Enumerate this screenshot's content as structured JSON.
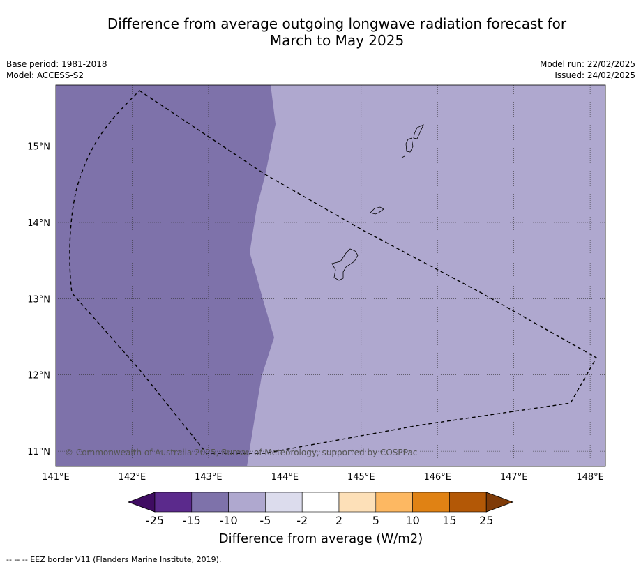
{
  "title_line1": "Difference from average outgoing longwave radiation forecast for",
  "title_line2": "March to May 2025",
  "meta_left": [
    "Base period: 1981-2018",
    "Model: ACCESS-S2"
  ],
  "meta_right": [
    "Model run: 22/02/2025",
    "Issued: 24/02/2025"
  ],
  "map": {
    "lon_range": [
      141,
      148.2
    ],
    "lat_range": [
      10.8,
      15.8
    ],
    "lon_ticks": [
      "141°E",
      "142°E",
      "143°E",
      "144°E",
      "145°E",
      "146°E",
      "147°E",
      "148°E"
    ],
    "lat_ticks": [
      "15°N",
      "14°N",
      "13°N",
      "12°N",
      "11°N"
    ],
    "grid": true,
    "regions": [
      {
        "name": "-15 to -10",
        "color": "#7e72aa"
      },
      {
        "name": "-10 to -5",
        "color": "#afa8cf"
      }
    ],
    "copyright": "© Commonwealth of Australia 2025, Bureau of Meteorology, supported by COSPPac"
  },
  "colorbar": {
    "ticks": [
      "-25",
      "-15",
      "-10",
      "-5",
      "-2",
      "2",
      "5",
      "10",
      "15",
      "25"
    ],
    "colors": [
      "#3f0c62",
      "#5b2a8c",
      "#7e72aa",
      "#afa8cf",
      "#dcdced",
      "#ffffff",
      "#fde0b8",
      "#fdb862",
      "#e08214",
      "#b35806",
      "#7f3b08"
    ],
    "label": "Difference from average (W/m2)"
  },
  "footnote": "--  --  -- EEZ border V11 (Flanders Marine Institute, 2019)."
}
